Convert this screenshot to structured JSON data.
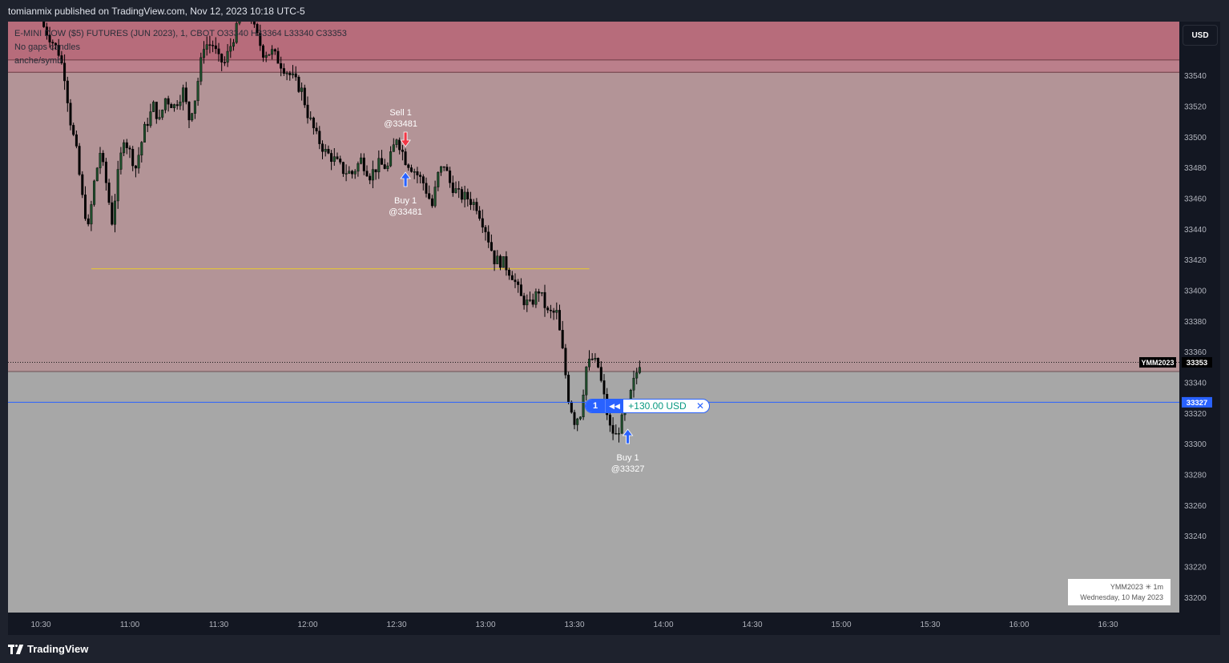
{
  "header": {
    "published_text": "tomianmix published on TradingView.com, Nov 12, 2023 10:18 UTC-5"
  },
  "legend": {
    "line1": "E-MINI DOW ($5) FUTURES (JUN 2023), 1, CBOT  O33340  H33364  L33340  C33353",
    "line2": "No gaps candles",
    "line3": "anche/symb"
  },
  "currency_button": "USD",
  "footer": {
    "brand": "TradingView"
  },
  "info_box": {
    "line1": "YMM2023 ✳ 1m",
    "line2": "Wednesday, 10 May 2023"
  },
  "position": {
    "qty": "1",
    "pnl": "+130.00 USD",
    "reverse_icon": "reverse-arrows-icon",
    "close_icon": "close-icon"
  },
  "colors": {
    "up": "#089981",
    "down": "#000000",
    "zone_top": "#b76c7b",
    "zone_mid": "#b39497",
    "zone_bottom": "#a7a7a7",
    "position_line": "#2962ff",
    "level_line": "#e0c040"
  },
  "chart_data": {
    "type": "candlestick",
    "symbol": "YMM2023",
    "interval": "1m",
    "ylim": [
      33190,
      33575
    ],
    "y_ticks": [
      33540,
      33520,
      33500,
      33480,
      33460,
      33440,
      33420,
      33400,
      33380,
      33360,
      33340,
      33320,
      33300,
      33280,
      33260,
      33240,
      33220,
      33200
    ],
    "x_ticks": [
      "10:30",
      "11:00",
      "11:30",
      "12:00",
      "12:30",
      "13:00",
      "13:30",
      "14:00",
      "14:30",
      "15:00",
      "15:30",
      "16:00",
      "16:30"
    ],
    "price_labels": [
      {
        "text": "YMM2023",
        "value": "33353",
        "price": 33353,
        "style": "last"
      },
      {
        "text": "",
        "value": "33327",
        "price": 33327,
        "style": "position"
      }
    ],
    "zones": [
      {
        "from": 33550,
        "to": 33610,
        "color": "#b76c7b"
      },
      {
        "from": 33542,
        "to": 33550,
        "color": "#bb7f8b"
      },
      {
        "from": 33347,
        "to": 33542,
        "color": "#b39497"
      },
      {
        "from": 33100,
        "to": 33347,
        "color": "#a7a7a7"
      }
    ],
    "level_line": {
      "price": 33414,
      "from": "10:47",
      "to": "13:35"
    },
    "position_line": 33327,
    "last_price_line": 33353,
    "trade_markers": [
      {
        "side": "sell",
        "label": "Sell 1",
        "price_text": "@33481",
        "time": "12:33"
      },
      {
        "side": "buy",
        "label": "Buy 1",
        "price_text": "@33481",
        "time": "12:33"
      },
      {
        "side": "buy",
        "label": "Buy 1",
        "price_text": "@33327",
        "time": "13:48"
      }
    ],
    "anchors": [
      [
        "10:30",
        33575
      ],
      [
        "10:33",
        33565
      ],
      [
        "10:36",
        33555
      ],
      [
        "10:38",
        33540
      ],
      [
        "10:40",
        33510
      ],
      [
        "10:42",
        33490
      ],
      [
        "10:44",
        33460
      ],
      [
        "10:46",
        33440
      ],
      [
        "10:48",
        33470
      ],
      [
        "10:50",
        33490
      ],
      [
        "10:52",
        33470
      ],
      [
        "10:54",
        33445
      ],
      [
        "10:56",
        33475
      ],
      [
        "10:58",
        33500
      ],
      [
        "11:00",
        33490
      ],
      [
        "11:02",
        33480
      ],
      [
        "11:05",
        33505
      ],
      [
        "11:08",
        33520
      ],
      [
        "11:10",
        33510
      ],
      [
        "11:12",
        33525
      ],
      [
        "11:15",
        33520
      ],
      [
        "11:18",
        33530
      ],
      [
        "11:20",
        33512
      ],
      [
        "11:22",
        33525
      ],
      [
        "11:25",
        33560
      ],
      [
        "11:28",
        33560
      ],
      [
        "11:30",
        33550
      ],
      [
        "11:32",
        33548
      ],
      [
        "11:35",
        33565
      ],
      [
        "11:38",
        33580
      ],
      [
        "11:40",
        33585
      ],
      [
        "11:42",
        33570
      ],
      [
        "11:45",
        33555
      ],
      [
        "11:48",
        33555
      ],
      [
        "11:52",
        33545
      ],
      [
        "11:55",
        33538
      ],
      [
        "11:58",
        33530
      ],
      [
        "12:00",
        33515
      ],
      [
        "12:03",
        33500
      ],
      [
        "12:06",
        33490
      ],
      [
        "12:09",
        33485
      ],
      [
        "12:12",
        33478
      ],
      [
        "12:15",
        33476
      ],
      [
        "12:18",
        33485
      ],
      [
        "12:21",
        33475
      ],
      [
        "12:24",
        33482
      ],
      [
        "12:27",
        33480
      ],
      [
        "12:30",
        33500
      ],
      [
        "12:33",
        33485
      ],
      [
        "12:36",
        33478
      ],
      [
        "12:39",
        33470
      ],
      [
        "12:42",
        33455
      ],
      [
        "12:44",
        33475
      ],
      [
        "12:46",
        33482
      ],
      [
        "12:48",
        33470
      ],
      [
        "12:51",
        33462
      ],
      [
        "12:54",
        33460
      ],
      [
        "12:57",
        33455
      ],
      [
        "13:00",
        33440
      ],
      [
        "13:03",
        33420
      ],
      [
        "13:06",
        33418
      ],
      [
        "13:09",
        33410
      ],
      [
        "13:12",
        33395
      ],
      [
        "13:15",
        33390
      ],
      [
        "13:18",
        33400
      ],
      [
        "13:21",
        33385
      ],
      [
        "13:24",
        33385
      ],
      [
        "13:26",
        33360
      ],
      [
        "13:28",
        33330
      ],
      [
        "13:30",
        33315
      ],
      [
        "13:32",
        33320
      ],
      [
        "13:34",
        33350
      ],
      [
        "13:36",
        33355
      ],
      [
        "13:38",
        33350
      ],
      [
        "13:40",
        33330
      ],
      [
        "13:42",
        33310
      ],
      [
        "13:44",
        33305
      ],
      [
        "13:46",
        33315
      ],
      [
        "13:48",
        33325
      ],
      [
        "13:50",
        33340
      ],
      [
        "13:52",
        33353
      ]
    ]
  }
}
